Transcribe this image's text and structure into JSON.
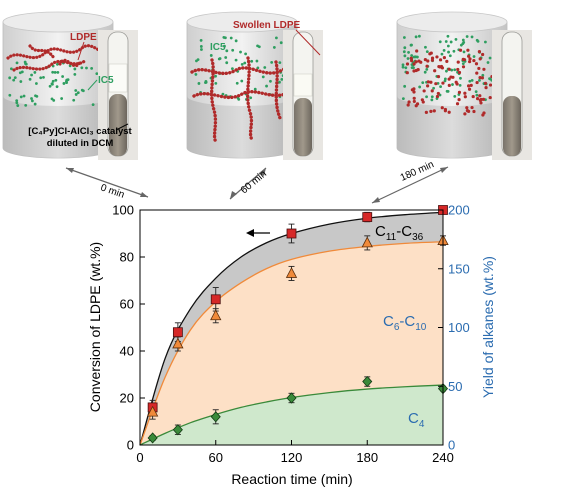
{
  "panels": [
    {
      "time_label": "0 min",
      "labels": {
        "ldpe": "LDPE",
        "ic5": "IC5",
        "catalyst_line1": "[C₄Py]Cl-AlCl₃ catalyst",
        "catalyst_line2": "diluted in DCM"
      }
    },
    {
      "time_label": "60 min",
      "labels": {
        "ic5": "IC5",
        "swollen": "Swollen LDPE"
      }
    },
    {
      "time_label": "180 min",
      "labels": {}
    }
  ],
  "colors": {
    "polymer": "#b02a2a",
    "ic5": "#2e9e60",
    "square": "#d62828",
    "triangle": "#f08a3a",
    "diamond": "#3a8a3a",
    "fill_c4": "#cfe8cc",
    "fill_c6c10": "#fde0c6",
    "fill_c11c36": "#c8c8c8",
    "right_axis": "#2b6cb0",
    "arrow": "#000000"
  },
  "chart_data": {
    "type": "scatter",
    "xlabel": "Reaction time (min)",
    "ylabel": "Conversion of LDPE (wt.%)",
    "y2label": "Yield of alkanes (wt.%)",
    "xlim": [
      0,
      240
    ],
    "ylim": [
      0,
      100
    ],
    "y2lim": [
      0,
      200
    ],
    "xticks": [
      0,
      60,
      120,
      180,
      240
    ],
    "yticks": [
      0,
      20,
      40,
      60,
      80,
      100
    ],
    "y2ticks": [
      0,
      50,
      100,
      150,
      200
    ],
    "series": [
      {
        "marker": "square",
        "axis": "left",
        "x": [
          10,
          30,
          60,
          120,
          180,
          240
        ],
        "y": [
          16,
          48,
          62,
          90,
          97,
          100
        ],
        "err": [
          3,
          4,
          5,
          4,
          2,
          1
        ]
      },
      {
        "marker": "triangle",
        "axis": "left",
        "x": [
          10,
          30,
          60,
          120,
          180,
          240
        ],
        "y": [
          14,
          43,
          55,
          73,
          86,
          87
        ],
        "err": [
          3,
          3,
          3,
          3,
          3,
          2
        ]
      },
      {
        "marker": "diamond",
        "axis": "left",
        "x": [
          10,
          30,
          60,
          120,
          180,
          240
        ],
        "y": [
          3,
          6.5,
          12,
          20,
          27,
          24
        ],
        "err": [
          1,
          2,
          3,
          2,
          2,
          1
        ]
      }
    ],
    "fit_curves": [
      {
        "fills": "c11c36",
        "points": [
          [
            0,
            0
          ],
          [
            20,
            37
          ],
          [
            40,
            58
          ],
          [
            60,
            71
          ],
          [
            80,
            80
          ],
          [
            100,
            86
          ],
          [
            120,
            90
          ],
          [
            150,
            94
          ],
          [
            180,
            96.5
          ],
          [
            210,
            98
          ],
          [
            240,
            99
          ]
        ]
      },
      {
        "fills": "c6c10",
        "points": [
          [
            0,
            0
          ],
          [
            20,
            29
          ],
          [
            40,
            49
          ],
          [
            60,
            61
          ],
          [
            80,
            69
          ],
          [
            100,
            75
          ],
          [
            120,
            79
          ],
          [
            150,
            82.5
          ],
          [
            180,
            84.5
          ],
          [
            210,
            85.8
          ],
          [
            240,
            86.5
          ]
        ]
      },
      {
        "fills": "c4",
        "points": [
          [
            0,
            0
          ],
          [
            20,
            5
          ],
          [
            40,
            9.5
          ],
          [
            60,
            13
          ],
          [
            80,
            16
          ],
          [
            100,
            18.3
          ],
          [
            120,
            20.2
          ],
          [
            150,
            22.3
          ],
          [
            180,
            23.8
          ],
          [
            210,
            24.8
          ],
          [
            240,
            25.5
          ]
        ]
      }
    ],
    "region_labels": [
      {
        "main": "C",
        "sub1": "11",
        "dash": "-C",
        "sub2": "36"
      },
      {
        "main": "C",
        "sub1": "6",
        "dash": "-C",
        "sub2": "10"
      },
      {
        "main": "C",
        "sub1": "4",
        "dash": "",
        "sub2": ""
      }
    ]
  }
}
